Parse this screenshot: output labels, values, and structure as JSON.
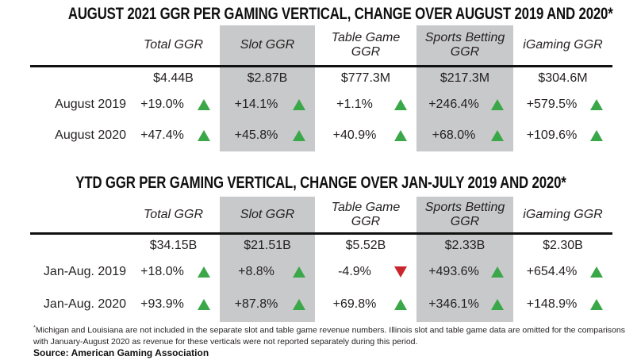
{
  "colors": {
    "up_green": "#3aa748",
    "down_red": "#c9252c",
    "highlight_gray": "#c8c9ca",
    "text": "#231f20"
  },
  "chart_data": [
    {
      "type": "table",
      "title": "AUGUST 2021 GGR PER GAMING VERTICAL, CHANGE OVER AUGUST 2019 AND 2020*",
      "columns": [
        "Total GGR",
        "Slot GGR",
        "Table Game GGR",
        "Sports Betting GGR",
        "iGaming GGR"
      ],
      "highlighted_columns": [
        "Slot GGR",
        "Sports Betting GGR"
      ],
      "current_values": [
        "$4.44B",
        "$2.87B",
        "$777.3M",
        "$217.3M",
        "$304.6M"
      ],
      "rows": [
        {
          "label": "August 2019",
          "changes": [
            "+19.0%",
            "+14.1%",
            "+1.1%",
            "+246.4%",
            "+579.5%"
          ],
          "directions": [
            "up",
            "up",
            "up",
            "up",
            "up"
          ]
        },
        {
          "label": "August 2020",
          "changes": [
            "+47.4%",
            "+45.8%",
            "+40.9%",
            "+68.0%",
            "+109.6%"
          ],
          "directions": [
            "up",
            "up",
            "up",
            "up",
            "up"
          ]
        }
      ]
    },
    {
      "type": "table",
      "title": "YTD GGR PER GAMING VERTICAL, CHANGE OVER JAN-JULY 2019 AND 2020*",
      "columns": [
        "Total GGR",
        "Slot GGR",
        "Table Game GGR",
        "Sports Betting GGR",
        "iGaming GGR"
      ],
      "highlighted_columns": [
        "Slot GGR",
        "Sports Betting GGR"
      ],
      "current_values": [
        "$34.15B",
        "$21.51B",
        "$5.52B",
        "$2.33B",
        "$2.30B"
      ],
      "rows": [
        {
          "label": "Jan-Aug. 2019",
          "changes": [
            "+18.0%",
            "+8.8%",
            "-4.9%",
            "+493.6%",
            "+654.4%"
          ],
          "directions": [
            "up",
            "up",
            "down",
            "up",
            "up"
          ]
        },
        {
          "label": "Jan-Aug. 2020",
          "changes": [
            "+93.9%",
            "+87.8%",
            "+69.8%",
            "+346.1%",
            "+148.9%"
          ],
          "directions": [
            "up",
            "up",
            "up",
            "up",
            "up"
          ]
        }
      ]
    }
  ],
  "footnote": {
    "marker": "*",
    "text": "Michigan and Louisiana are not included in the separate slot and table game revenue numbers. Illinois slot and table game data are omitted for the comparisons with January-August 2020 as revenue for these verticals were not reported separately during this period."
  },
  "source": "Source: American Gaming Association"
}
